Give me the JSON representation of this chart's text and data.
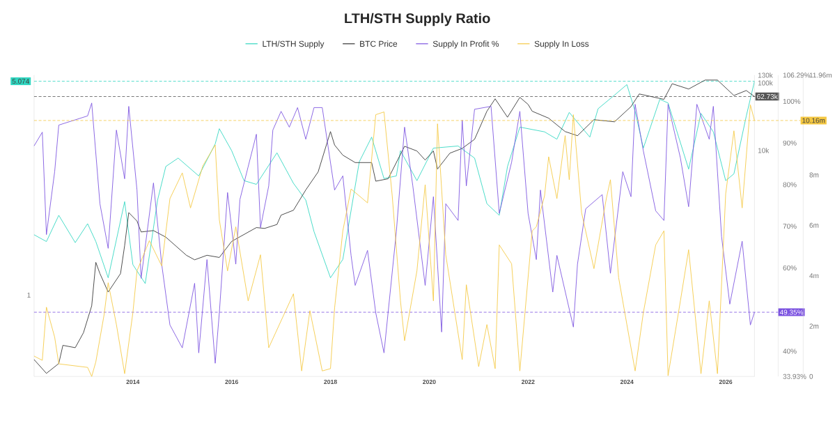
{
  "chart_data": [
    {
      "type": "line",
      "title": "LTH/STH Supply Ratio",
      "legend": "top",
      "log": "y2",
      "tick_labels": "y",
      "xlim": [
        "2012-01",
        "2026-08"
      ],
      "ylim": [
        -0.55,
        5.19
      ],
      "yticks": [
        1,
        {
          "value": 5.074,
          "label": "5.074"
        }
      ],
      "y2lim": [
        4.5,
        130000
      ],
      "y2ticks": [
        {
          "value": 10000,
          "label": "10k"
        },
        {
          "value": 100000,
          "label": "100k"
        },
        {
          "value": 130000,
          "label": "130k"
        }
      ],
      "series": [
        {
          "name": "LTH/STH Supply",
          "color": "#2fd6c0",
          "x": [
            "2012-01",
            "2012-04",
            "2012-07",
            "2012-11",
            "2013-02",
            "2013-04",
            "2013-07",
            "2013-11",
            "2014-01",
            "2014-04",
            "2014-07",
            "2014-09",
            "2014-12",
            "2015-05",
            "2015-09",
            "2015-10",
            "2016-01",
            "2016-04",
            "2016-07",
            "2016-12",
            "2017-04",
            "2017-07",
            "2017-09",
            "2018-01",
            "2018-04",
            "2018-08",
            "2018-11",
            "2019-02",
            "2019-05",
            "2019-06",
            "2019-10",
            "2020-02",
            "2020-08",
            "2020-12",
            "2021-03",
            "2021-06",
            "2021-08",
            "2021-11",
            "2022-05",
            "2022-08",
            "2022-11",
            "2023-04",
            "2023-06",
            "2023-10",
            "2024-01",
            "2024-03",
            "2024-05",
            "2024-09",
            "2024-11",
            "2025-04",
            "2025-07",
            "2025-10",
            "2026-01",
            "2026-03",
            "2026-06",
            "2026-08"
          ],
          "values": [
            2.15,
            2.02,
            2.52,
            2.0,
            2.36,
            2.02,
            1.33,
            2.78,
            1.58,
            1.22,
            2.81,
            3.45,
            3.61,
            3.27,
            3.88,
            4.17,
            3.75,
            3.18,
            3.11,
            3.71,
            3.13,
            2.81,
            2.21,
            1.33,
            1.68,
            3.54,
            4.01,
            3.22,
            3.27,
            3.75,
            3.18,
            3.8,
            3.84,
            3.61,
            2.74,
            2.52,
            3.45,
            4.2,
            4.11,
            3.97,
            4.48,
            4.01,
            4.55,
            4.81,
            5.01,
            4.5,
            3.8,
            4.73,
            4.66,
            3.4,
            4.46,
            4.11,
            3.18,
            3.31,
            4.41,
            5.074
          ]
        },
        {
          "name": "BTC Price",
          "color": "#333333",
          "axis": "y2",
          "x": [
            "2012-01",
            "2012-04",
            "2012-07",
            "2012-08",
            "2012-11",
            "2013-01",
            "2013-03",
            "2013-04",
            "2013-05",
            "2013-07",
            "2013-10",
            "2013-11",
            "2013-12",
            "2014-02",
            "2014-03",
            "2014-06",
            "2014-09",
            "2015-02",
            "2015-04",
            "2015-07",
            "2015-10",
            "2016-01",
            "2016-07",
            "2016-09",
            "2016-12",
            "2017-01",
            "2017-04",
            "2017-07",
            "2017-10",
            "2018-01",
            "2018-02",
            "2018-04",
            "2018-07",
            "2018-11",
            "2018-12",
            "2019-03",
            "2019-07",
            "2019-10",
            "2019-12",
            "2020-02",
            "2020-03",
            "2020-06",
            "2020-09",
            "2020-12",
            "2021-03",
            "2021-05",
            "2021-08",
            "2021-11",
            "2022-01",
            "2022-02",
            "2022-06",
            "2022-10",
            "2023-01",
            "2023-05",
            "2023-10",
            "2024-02",
            "2024-04",
            "2024-10",
            "2024-12",
            "2025-04",
            "2025-08",
            "2025-11",
            "2026-03",
            "2026-06",
            "2026-08"
          ],
          "values": [
            8,
            5,
            7,
            13,
            12,
            20,
            50,
            220,
            150,
            80,
            150,
            390,
            1200,
            900,
            620,
            650,
            520,
            280,
            240,
            280,
            260,
            450,
            720,
            700,
            800,
            1100,
            1300,
            2600,
            4800,
            19000,
            12000,
            8500,
            6600,
            6600,
            3500,
            3800,
            11500,
            9800,
            7200,
            9800,
            5300,
            9100,
            10700,
            14600,
            38000,
            58000,
            31000,
            61000,
            48000,
            38000,
            30000,
            19000,
            16500,
            28500,
            26500,
            44500,
            68500,
            57000,
            97000,
            81000,
            110000,
            110000,
            65000,
            77000,
            62730
          ]
        }
      ],
      "ref_lines": [
        {
          "axis": "y",
          "value": 5.074,
          "color": "#2fd6c0",
          "line_style": "dashed"
        },
        {
          "axis": "y2",
          "value": 62730,
          "label": "62.73k",
          "color": "#555555",
          "line_style": "dashed"
        }
      ]
    },
    {
      "type": "line",
      "legend": "top",
      "xlim": [
        "2012-01",
        "2026-08"
      ],
      "xticks": [
        "2014",
        "2016",
        "2018",
        "2020",
        "2022",
        "2024",
        "2026"
      ],
      "ylim": [
        33.93,
        106.29
      ],
      "yticks": [
        {
          "value": 33.93,
          "label": "33.93%"
        },
        {
          "value": 40,
          "label": "40%"
        },
        {
          "value": 60,
          "label": "60%"
        },
        {
          "value": 70,
          "label": "70%"
        },
        {
          "value": 80,
          "label": "80%"
        },
        {
          "value": 90,
          "label": "90%"
        },
        {
          "value": 100,
          "label": "100%"
        },
        {
          "value": 106.29,
          "label": "106.29%"
        }
      ],
      "y2lim": [
        0,
        11.96
      ],
      "y2ticks": [
        0,
        {
          "value": 2,
          "label": "2m"
        },
        {
          "value": 4,
          "label": "4m"
        },
        {
          "value": 6,
          "label": "6m"
        },
        {
          "value": 8,
          "label": "8m"
        },
        {
          "value": 11.96,
          "label": "11.96m"
        }
      ],
      "series": [
        {
          "name": "Supply In Profit %",
          "color": "#7b52e0",
          "x": [
            "2012-01",
            "2012-03",
            "2012-04",
            "2012-06",
            "2012-07",
            "2013-02",
            "2013-03",
            "2013-05",
            "2013-07",
            "2013-09",
            "2013-11",
            "2013-12",
            "2014-02",
            "2014-03",
            "2014-06",
            "2014-08",
            "2014-10",
            "2015-01",
            "2015-04",
            "2015-05",
            "2015-07",
            "2015-09",
            "2015-10",
            "2015-12",
            "2016-02",
            "2016-03",
            "2016-05",
            "2016-07",
            "2016-08",
            "2016-10",
            "2016-11",
            "2017-01",
            "2017-03",
            "2017-05",
            "2017-07",
            "2017-09",
            "2017-11",
            "2018-02",
            "2018-04",
            "2018-06",
            "2018-07",
            "2018-10",
            "2018-12",
            "2019-02",
            "2019-05",
            "2019-07",
            "2019-09",
            "2019-12",
            "2020-02",
            "2020-04",
            "2020-05",
            "2020-08",
            "2020-09",
            "2020-10",
            "2020-12",
            "2021-04",
            "2021-06",
            "2021-09",
            "2021-11",
            "2022-01",
            "2022-03",
            "2022-04",
            "2022-07",
            "2022-08",
            "2022-12",
            "2023-01",
            "2023-03",
            "2023-07",
            "2023-09",
            "2023-12",
            "2024-02",
            "2024-03",
            "2024-05",
            "2024-08",
            "2024-10",
            "2024-11",
            "2025-02",
            "2025-04",
            "2025-06",
            "2025-09",
            "2025-10",
            "2025-12",
            "2026-02",
            "2026-05",
            "2026-07",
            "2026-08"
          ],
          "values": [
            89.3,
            92.6,
            68.0,
            83.1,
            94.3,
            96.5,
            99.6,
            75.4,
            64.7,
            93.1,
            81.4,
            98.8,
            78.7,
            57.5,
            80.4,
            60.9,
            46.3,
            40.8,
            56.3,
            39.6,
            62.0,
            37.1,
            49.2,
            78.1,
            60.9,
            76.4,
            84.3,
            92.1,
            69.7,
            79.7,
            93.1,
            97.6,
            93.8,
            98.5,
            90.9,
            98.5,
            98.5,
            78.7,
            82.1,
            63.0,
            55.8,
            64.2,
            49.2,
            39.6,
            68.7,
            93.8,
            79.7,
            55.8,
            77.1,
            44.6,
            75.4,
            71.4,
            95.5,
            79.7,
            98.1,
            98.8,
            73.1,
            85.4,
            97.6,
            73.1,
            62.0,
            78.7,
            54.2,
            63.0,
            45.8,
            60.9,
            74.2,
            77.6,
            58.7,
            83.1,
            77.1,
            99.3,
            88.1,
            73.7,
            71.4,
            99.3,
            86.4,
            74.7,
            99.3,
            90.9,
            98.8,
            67.5,
            51.3,
            66.4,
            46.3,
            49.35
          ]
        },
        {
          "name": "Supply In Loss",
          "color": "#f5c842",
          "axis": "y2",
          "x": [
            "2012-01",
            "2012-03",
            "2012-04",
            "2012-06",
            "2012-07",
            "2013-02",
            "2013-03",
            "2013-04",
            "2013-06",
            "2013-07",
            "2013-09",
            "2013-11",
            "2014-01",
            "2014-02",
            "2014-05",
            "2014-08",
            "2014-10",
            "2015-01",
            "2015-03",
            "2015-06",
            "2015-09",
            "2015-10",
            "2015-12",
            "2016-02",
            "2016-05",
            "2016-08",
            "2016-10",
            "2017-04",
            "2017-06",
            "2017-08",
            "2017-11",
            "2018-01",
            "2018-02",
            "2018-04",
            "2018-06",
            "2018-10",
            "2018-12",
            "2019-02",
            "2019-04",
            "2019-06",
            "2019-07",
            "2019-10",
            "2019-12",
            "2020-02",
            "2020-03",
            "2020-05",
            "2020-09",
            "2020-10",
            "2021-01",
            "2021-03",
            "2021-05",
            "2021-06",
            "2021-09",
            "2021-11",
            "2022-02",
            "2022-03",
            "2022-05",
            "2022-06",
            "2022-08",
            "2022-10",
            "2022-11",
            "2022-12",
            "2023-02",
            "2023-05",
            "2023-08",
            "2023-09",
            "2023-11",
            "2024-01",
            "2024-03",
            "2024-05",
            "2024-08",
            "2024-10",
            "2024-11",
            "2025-02",
            "2025-04",
            "2025-07",
            "2025-09",
            "2025-11",
            "2026-01",
            "2026-03",
            "2026-05",
            "2026-07",
            "2026-08"
          ],
          "values": [
            0.81,
            0.64,
            2.75,
            1.56,
            0.5,
            0.36,
            0,
            0.58,
            2.44,
            3.72,
            2.06,
            0.11,
            2.53,
            4.19,
            5.39,
            4.39,
            7.06,
            8.08,
            6.69,
            8.36,
            9.19,
            6.22,
            4.19,
            5.94,
            3.0,
            4.83,
            1.14,
            3.28,
            0.22,
            2.61,
            0.22,
            0.31,
            2.72,
            5.78,
            7.44,
            6.89,
            10.39,
            10.5,
            7.17,
            3.0,
            1.42,
            4.19,
            7.61,
            3.0,
            10.03,
            4.83,
            0.67,
            3.64,
            0.39,
            2.06,
            0.31,
            5.22,
            4.47,
            0.22,
            5.78,
            5.94,
            7.17,
            8.72,
            7.06,
            9.56,
            7.81,
            10.39,
            6.5,
            4.28,
            7.06,
            7.81,
            3.92,
            2.06,
            0.22,
            2.53,
            5.22,
            5.78,
            0.03,
            3.0,
            5.03,
            0.11,
            3.0,
            0.11,
            7.25,
            9.75,
            6.69,
            10.78,
            10.16
          ]
        }
      ],
      "ref_lines": [
        {
          "axis": "y",
          "value": 49.35,
          "label": "49.35%",
          "color": "#7b52e0",
          "line_style": "dashed"
        },
        {
          "axis": "y2",
          "value": 10.16,
          "label": "10.16m",
          "color": "#f5c842",
          "line_style": "dashed"
        }
      ]
    }
  ]
}
